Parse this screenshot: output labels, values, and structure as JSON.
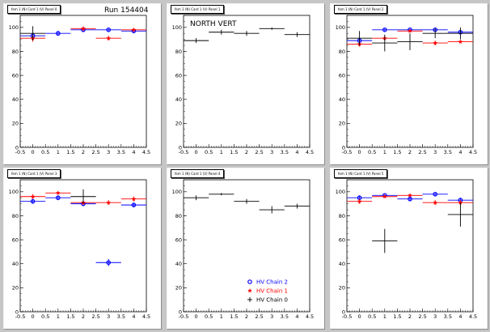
{
  "run_label": "Run 154404",
  "legend": [
    {
      "label": "HV Chain 2",
      "color": "#0000ff",
      "marker": "open-circle"
    },
    {
      "label": "HV Chain 1",
      "color": "#ff0000",
      "marker": "star"
    },
    {
      "label": "HV Chain 0",
      "color": "#000000",
      "marker": "cross"
    }
  ],
  "chart_data": [
    {
      "type": "scatter",
      "pad_title": "fem 1 (N) Card 1 (V) Panel 0",
      "xlim": [
        -0.5,
        4.5
      ],
      "ylim": [
        0,
        110
      ],
      "xticks": [
        "-0.5",
        "0",
        "0.5",
        "1",
        "1.5",
        "2",
        "2.5",
        "3",
        "3.5",
        "4",
        "4.5"
      ],
      "yticks": [
        "0",
        "20",
        "40",
        "60",
        "80",
        "100"
      ],
      "series": [
        {
          "color": "#0000ff",
          "marker": "circle",
          "x": [
            0,
            1,
            2,
            3,
            4
          ],
          "y": [
            93,
            95,
            98,
            98,
            97
          ],
          "yerr": [
            2,
            2,
            2,
            1,
            1
          ]
        },
        {
          "color": "#ff0000",
          "marker": "star",
          "x": [
            0,
            2,
            3,
            4
          ],
          "y": [
            91,
            99,
            91,
            98
          ],
          "yerr": [
            3,
            2,
            2,
            1
          ]
        },
        {
          "color": "#000000",
          "marker": "cross",
          "x": [
            0
          ],
          "y": [
            95
          ],
          "yerr": [
            6
          ]
        }
      ]
    },
    {
      "type": "scatter",
      "pad_title": "fem 1 (N) Card 1 (V) Panel 1",
      "annotation": "NORTH VERT",
      "xlim": [
        -0.5,
        4.5
      ],
      "ylim": [
        0,
        110
      ],
      "xticks": [
        "-0.5",
        "0",
        "0.5",
        "1",
        "1.5",
        "2",
        "2.5",
        "3",
        "3.5",
        "4",
        "4.5"
      ],
      "yticks": [
        "0",
        "20",
        "40",
        "60",
        "80",
        "100"
      ],
      "series": [
        {
          "color": "#000000",
          "marker": "cross",
          "x": [
            0,
            1,
            2,
            3,
            4
          ],
          "y": [
            89,
            96,
            95,
            99,
            94
          ],
          "yerr": [
            2,
            2,
            2,
            1,
            2
          ]
        }
      ]
    },
    {
      "type": "scatter",
      "pad_title": "fem 1 (N) Card 1 (V) Panel 2",
      "xlim": [
        -0.5,
        4.5
      ],
      "ylim": [
        0,
        110
      ],
      "xticks": [
        "-0.5",
        "0",
        "0.5",
        "1",
        "1.5",
        "2",
        "2.5",
        "3",
        "3.5",
        "4",
        "4.5"
      ],
      "yticks": [
        "0",
        "20",
        "40",
        "60",
        "80",
        "100"
      ],
      "series": [
        {
          "color": "#0000ff",
          "marker": "circle",
          "x": [
            0,
            1,
            2,
            3,
            4
          ],
          "y": [
            89,
            98,
            98,
            98,
            96
          ],
          "yerr": [
            2,
            1,
            1,
            1,
            1
          ]
        },
        {
          "color": "#ff0000",
          "marker": "star",
          "x": [
            0,
            1,
            2,
            3,
            4
          ],
          "y": [
            86,
            91,
            97,
            87,
            88
          ],
          "yerr": [
            2,
            2,
            1,
            2,
            1
          ]
        },
        {
          "color": "#000000",
          "marker": "cross",
          "x": [
            0,
            1,
            2,
            3,
            4
          ],
          "y": [
            91,
            87,
            88,
            95,
            95
          ],
          "yerr": [
            6,
            7,
            7,
            4,
            5
          ]
        }
      ]
    },
    {
      "type": "scatter",
      "pad_title": "fem 1 (N) Card 1 (V) Panel 3",
      "xlim": [
        -0.5,
        4.5
      ],
      "ylim": [
        0,
        110
      ],
      "xticks": [
        "-0.5",
        "0",
        "0.5",
        "1",
        "1.5",
        "2",
        "2.5",
        "3",
        "3.5",
        "4",
        "4.5"
      ],
      "yticks": [
        "0",
        "20",
        "40",
        "60",
        "80",
        "100"
      ],
      "series": [
        {
          "color": "#0000ff",
          "marker": "circle",
          "x": [
            0,
            1,
            2,
            3,
            4
          ],
          "y": [
            92,
            95,
            90,
            41,
            89
          ],
          "yerr": [
            2,
            2,
            2,
            3,
            2
          ]
        },
        {
          "color": "#ff0000",
          "marker": "star",
          "x": [
            0,
            1,
            2,
            3,
            4
          ],
          "y": [
            96,
            99,
            91,
            91,
            94
          ],
          "yerr": [
            2,
            1,
            2,
            2,
            2
          ]
        },
        {
          "color": "#000000",
          "marker": "cross",
          "x": [
            2
          ],
          "y": [
            96
          ],
          "yerr": [
            6
          ]
        }
      ]
    },
    {
      "type": "scatter",
      "pad_title": "fem 1 (N) Card 1 (V) Panel 4",
      "xlim": [
        -0.5,
        4.5
      ],
      "ylim": [
        0,
        110
      ],
      "xticks": [
        "-0.5",
        "0",
        "0.5",
        "1",
        "1.5",
        "2",
        "2.5",
        "3",
        "3.5",
        "4",
        "4.5"
      ],
      "yticks": [
        "0",
        "20",
        "40",
        "60",
        "80",
        "100"
      ],
      "series": [
        {
          "color": "#000000",
          "marker": "cross",
          "x": [
            0,
            1,
            2,
            3,
            4
          ],
          "y": [
            95,
            98,
            92,
            85,
            88
          ],
          "yerr": [
            2,
            1,
            2,
            3,
            2
          ]
        }
      ]
    },
    {
      "type": "scatter",
      "pad_title": "fem 1 (N) Card 1 (V) Panel 5",
      "xlim": [
        -0.5,
        4.5
      ],
      "ylim": [
        0,
        110
      ],
      "xticks": [
        "-0.5",
        "0",
        "0.5",
        "1",
        "1.5",
        "2",
        "2.5",
        "3",
        "3.5",
        "4",
        "4.5"
      ],
      "yticks": [
        "0",
        "20",
        "40",
        "60",
        "80",
        "100"
      ],
      "series": [
        {
          "color": "#0000ff",
          "marker": "circle",
          "x": [
            0,
            1,
            2,
            3,
            4
          ],
          "y": [
            95,
            97,
            94,
            98,
            93
          ],
          "yerr": [
            2,
            1,
            2,
            1,
            2
          ]
        },
        {
          "color": "#ff0000",
          "marker": "star",
          "x": [
            0,
            1,
            2,
            3,
            4
          ],
          "y": [
            92,
            96,
            97,
            91,
            91
          ],
          "yerr": [
            2,
            1,
            1,
            2,
            2
          ]
        },
        {
          "color": "#000000",
          "marker": "cross",
          "x": [
            1,
            4
          ],
          "y": [
            59,
            81
          ],
          "yerr": [
            10,
            10
          ]
        }
      ]
    }
  ]
}
